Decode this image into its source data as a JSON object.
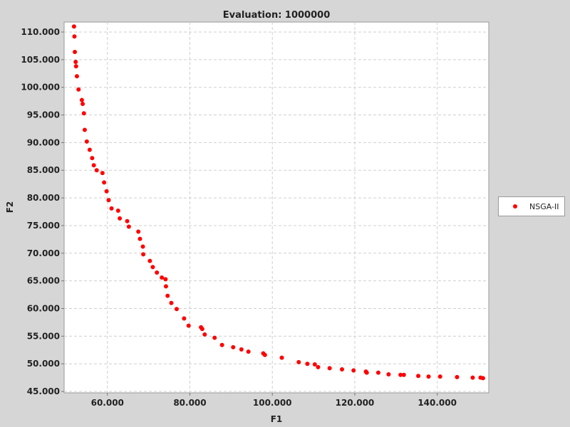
{
  "chart_data": {
    "type": "scatter",
    "title": "Evaluation: 1000000",
    "xlabel": "F1",
    "ylabel": "F2",
    "xlim": [
      49500,
      152500
    ],
    "ylim": [
      44750,
      111800
    ],
    "xticks": [
      60000,
      80000,
      100000,
      120000,
      140000
    ],
    "xtick_labels": [
      "60.000",
      "80.000",
      "100.000",
      "120.000",
      "140.000"
    ],
    "yticks": [
      45000,
      50000,
      55000,
      60000,
      65000,
      70000,
      75000,
      80000,
      85000,
      90000,
      95000,
      100000,
      105000,
      110000
    ],
    "ytick_labels": [
      "45.000",
      "50.000",
      "55.000",
      "60.000",
      "65.000",
      "70.000",
      "75.000",
      "80.000",
      "85.000",
      "90.000",
      "95.000",
      "100.000",
      "105.000",
      "110.000"
    ],
    "grid": true,
    "legend_position": "right",
    "series": [
      {
        "name": "NSGA-II",
        "color": "#ff0000",
        "points": [
          [
            51900,
            111000
          ],
          [
            52000,
            109200
          ],
          [
            52100,
            106400
          ],
          [
            52300,
            104600
          ],
          [
            52400,
            103800
          ],
          [
            52600,
            102000
          ],
          [
            53000,
            99600
          ],
          [
            53800,
            97700
          ],
          [
            54000,
            97000
          ],
          [
            54300,
            95300
          ],
          [
            54500,
            92300
          ],
          [
            55000,
            90200
          ],
          [
            55700,
            88700
          ],
          [
            56300,
            87200
          ],
          [
            56700,
            85900
          ],
          [
            57400,
            85000
          ],
          [
            58800,
            84500
          ],
          [
            59200,
            82800
          ],
          [
            59800,
            81200
          ],
          [
            60300,
            79600
          ],
          [
            61000,
            78100
          ],
          [
            62600,
            77700
          ],
          [
            63000,
            76300
          ],
          [
            64800,
            75800
          ],
          [
            65200,
            74800
          ],
          [
            67500,
            73900
          ],
          [
            67900,
            72600
          ],
          [
            68600,
            71200
          ],
          [
            68700,
            69800
          ],
          [
            70300,
            68600
          ],
          [
            71000,
            67500
          ],
          [
            72000,
            66500
          ],
          [
            73200,
            65600
          ],
          [
            74100,
            65300
          ],
          [
            74200,
            64000
          ],
          [
            74600,
            62300
          ],
          [
            75500,
            61000
          ],
          [
            76800,
            59900
          ],
          [
            78600,
            58200
          ],
          [
            79700,
            56900
          ],
          [
            82700,
            56600
          ],
          [
            83000,
            56300
          ],
          [
            83600,
            55300
          ],
          [
            86000,
            54700
          ],
          [
            87800,
            53400
          ],
          [
            90500,
            53000
          ],
          [
            92500,
            52600
          ],
          [
            94200,
            52200
          ],
          [
            97800,
            51900
          ],
          [
            98200,
            51600
          ],
          [
            102300,
            51100
          ],
          [
            106400,
            50300
          ],
          [
            108500,
            50000
          ],
          [
            110300,
            49900
          ],
          [
            111100,
            49400
          ],
          [
            113900,
            49200
          ],
          [
            116900,
            49000
          ],
          [
            119700,
            48800
          ],
          [
            122700,
            48600
          ],
          [
            122900,
            48400
          ],
          [
            125700,
            48400
          ],
          [
            128200,
            48100
          ],
          [
            131100,
            48000
          ],
          [
            131900,
            48000
          ],
          [
            135400,
            47800
          ],
          [
            137900,
            47700
          ],
          [
            140700,
            47700
          ],
          [
            144800,
            47600
          ],
          [
            148600,
            47500
          ],
          [
            150500,
            47500
          ],
          [
            151100,
            47400
          ]
        ]
      }
    ]
  }
}
